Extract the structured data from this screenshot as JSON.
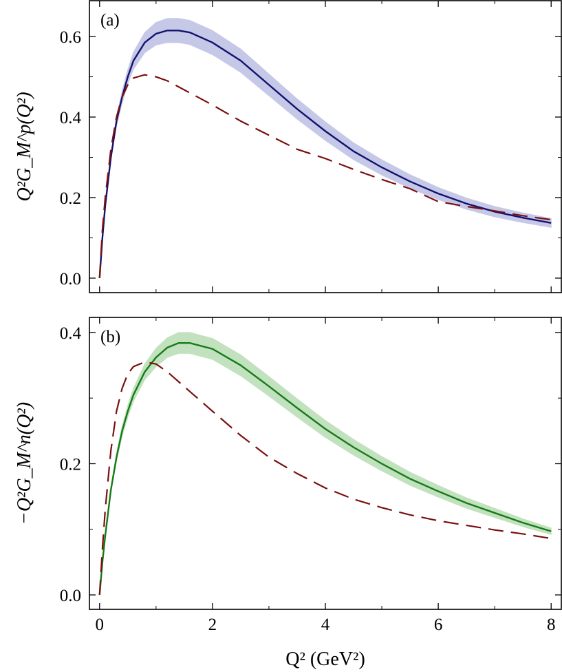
{
  "chart_data": [
    {
      "type": "line",
      "panel_label": "(a)",
      "ylabel": "Q²G_M^p(Q²)",
      "xlim": [
        -0.18,
        8.18
      ],
      "xticks": [
        0,
        2,
        4,
        6,
        8
      ],
      "xminor": [
        1,
        3,
        5,
        7
      ],
      "xtick_labels": false,
      "ylim": [
        -0.036,
        0.689
      ],
      "yticks": [
        {
          "value": 0,
          "label": "0.0"
        },
        0.2,
        0.4,
        0.6
      ],
      "yminor": [
        0.1,
        0.3,
        0.5
      ],
      "x": [
        0,
        0.05,
        0.1,
        0.2,
        0.3,
        0.4,
        0.5,
        0.6,
        0.8,
        1,
        1.2,
        1.4,
        1.6,
        2,
        2.5,
        3,
        3.5,
        4,
        4.5,
        5,
        5.5,
        6,
        6.5,
        7,
        7.5,
        8
      ],
      "series": [
        {
          "color": "#12126e",
          "style": "solid",
          "values": [
            0,
            0.1,
            0.18,
            0.3,
            0.39,
            0.45,
            0.5,
            0.54,
            0.585,
            0.607,
            0.615,
            0.615,
            0.61,
            0.585,
            0.54,
            0.48,
            0.42,
            0.365,
            0.315,
            0.275,
            0.24,
            0.21,
            0.185,
            0.165,
            0.15,
            0.137
          ],
          "band": {
            "color": "#c6c8e8",
            "lower": [
              0,
              0.098,
              0.176,
              0.292,
              0.378,
              0.435,
              0.482,
              0.519,
              0.56,
              0.579,
              0.585,
              0.585,
              0.58,
              0.555,
              0.511,
              0.453,
              0.395,
              0.342,
              0.294,
              0.256,
              0.223,
              0.195,
              0.171,
              0.152,
              0.138,
              0.126
            ],
            "upper": [
              0,
              0.102,
              0.184,
              0.308,
              0.402,
              0.465,
              0.518,
              0.561,
              0.61,
              0.635,
              0.645,
              0.645,
              0.64,
              0.615,
              0.569,
              0.507,
              0.445,
              0.388,
              0.336,
              0.294,
              0.257,
              0.225,
              0.199,
              0.178,
              0.162,
              0.148
            ]
          }
        },
        {
          "color": "#7a1010",
          "style": "dashed",
          "values": [
            0,
            0.12,
            0.2,
            0.32,
            0.4,
            0.45,
            0.48,
            0.497,
            0.505,
            0.5,
            0.49,
            0.475,
            0.46,
            0.43,
            0.39,
            0.355,
            0.32,
            0.297,
            0.27,
            0.245,
            0.222,
            0.19,
            0.178,
            0.167,
            0.155,
            0.145
          ]
        }
      ]
    },
    {
      "type": "line",
      "panel_label": "(b)",
      "ylabel": "−Q²G_M^n(Q²)",
      "xlabel": "Q² (GeV²)",
      "xlim": [
        -0.18,
        8.18
      ],
      "xticks": [
        0,
        2,
        4,
        6,
        8
      ],
      "xminor": [
        1,
        3,
        5,
        7
      ],
      "xtick_labels": true,
      "ylim": [
        -0.022,
        0.423
      ],
      "yticks": [
        {
          "value": 0,
          "label": "0.0"
        },
        0.2,
        0.4
      ],
      "yminor": [
        0.1,
        0.3
      ],
      "x": [
        0,
        0.05,
        0.1,
        0.2,
        0.3,
        0.4,
        0.5,
        0.6,
        0.8,
        1,
        1.2,
        1.4,
        1.6,
        2,
        2.5,
        3,
        3.5,
        4,
        4.5,
        5,
        5.5,
        6,
        6.5,
        7,
        7.5,
        8
      ],
      "series": [
        {
          "color": "#177a17",
          "style": "solid",
          "values": [
            0,
            0.05,
            0.09,
            0.16,
            0.21,
            0.25,
            0.28,
            0.305,
            0.34,
            0.362,
            0.377,
            0.384,
            0.384,
            0.375,
            0.35,
            0.318,
            0.285,
            0.253,
            0.225,
            0.2,
            0.177,
            0.158,
            0.14,
            0.125,
            0.11,
            0.097
          ],
          "band": {
            "color": "#c2e2bf",
            "lower": [
              0,
              0.049,
              0.088,
              0.156,
              0.204,
              0.242,
              0.271,
              0.295,
              0.328,
              0.348,
              0.362,
              0.368,
              0.368,
              0.359,
              0.334,
              0.303,
              0.271,
              0.24,
              0.213,
              0.189,
              0.167,
              0.149,
              0.132,
              0.118,
              0.104,
              0.092
            ],
            "upper": [
              0,
              0.051,
              0.092,
              0.164,
              0.216,
              0.258,
              0.289,
              0.315,
              0.352,
              0.376,
              0.392,
              0.4,
              0.4,
              0.391,
              0.366,
              0.333,
              0.299,
              0.266,
              0.237,
              0.211,
              0.187,
              0.167,
              0.148,
              0.132,
              0.116,
              0.102
            ]
          }
        },
        {
          "color": "#7a1010",
          "style": "dashed",
          "values": [
            0,
            0.07,
            0.13,
            0.22,
            0.28,
            0.315,
            0.337,
            0.348,
            0.355,
            0.352,
            0.34,
            0.325,
            0.31,
            0.28,
            0.243,
            0.21,
            0.185,
            0.163,
            0.146,
            0.133,
            0.122,
            0.113,
            0.106,
            0.099,
            0.093,
            0.086
          ]
        }
      ]
    }
  ]
}
